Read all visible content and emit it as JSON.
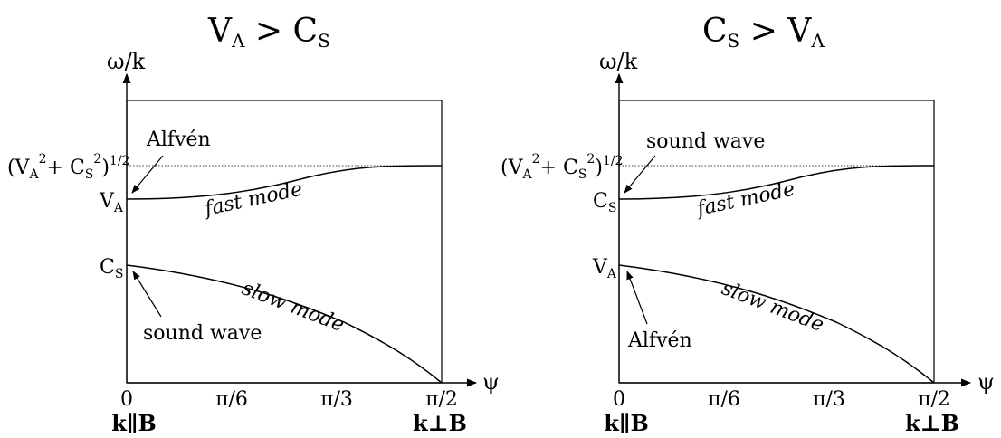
{
  "panels": [
    {
      "title_main": "V",
      "title_main_sub": "A",
      "title_op": " > ",
      "title_second": "C",
      "title_second_sub": "S",
      "yaxis_label": "ω/k",
      "xaxis_label": "ψ",
      "dotted_label_prefix": "(V",
      "dotted_label_sub1": "A",
      "dotted_label_mid": "+ C",
      "dotted_label_sub2": "S",
      "dotted_label_suffix": ")",
      "dotted_label_sup": "1/2",
      "dotted_label_sq": "2",
      "upper_level_main": "V",
      "upper_level_sub": "A",
      "lower_level_main": "C",
      "lower_level_sub": "S",
      "upper_annotation": "Alfvén",
      "lower_annotation": "sound wave",
      "upper_curve_label": "fast mode",
      "lower_curve_label": "slow mode",
      "x_ticks": [
        "0",
        "π/6",
        "π/3",
        "π/2"
      ],
      "k_parallel": "k∥B",
      "k_perp": "k⊥B"
    },
    {
      "title_main": "C",
      "title_main_sub": "S",
      "title_op": " > ",
      "title_second": "V",
      "title_second_sub": "A",
      "yaxis_label": "ω/k",
      "xaxis_label": "ψ",
      "dotted_label_prefix": "(V",
      "dotted_label_sub1": "A",
      "dotted_label_mid": "+ C",
      "dotted_label_sub2": "S",
      "dotted_label_suffix": ")",
      "dotted_label_sup": "1/2",
      "dotted_label_sq": "2",
      "upper_level_main": "C",
      "upper_level_sub": "S",
      "lower_level_main": "V",
      "lower_level_sub": "A",
      "upper_annotation": "sound wave",
      "lower_annotation": "Alfvén",
      "upper_curve_label": "fast mode",
      "lower_curve_label": "slow mode",
      "x_ticks": [
        "0",
        "π/6",
        "π/3",
        "π/2"
      ],
      "k_parallel": "k∥B",
      "k_perp": "k⊥B"
    }
  ]
}
